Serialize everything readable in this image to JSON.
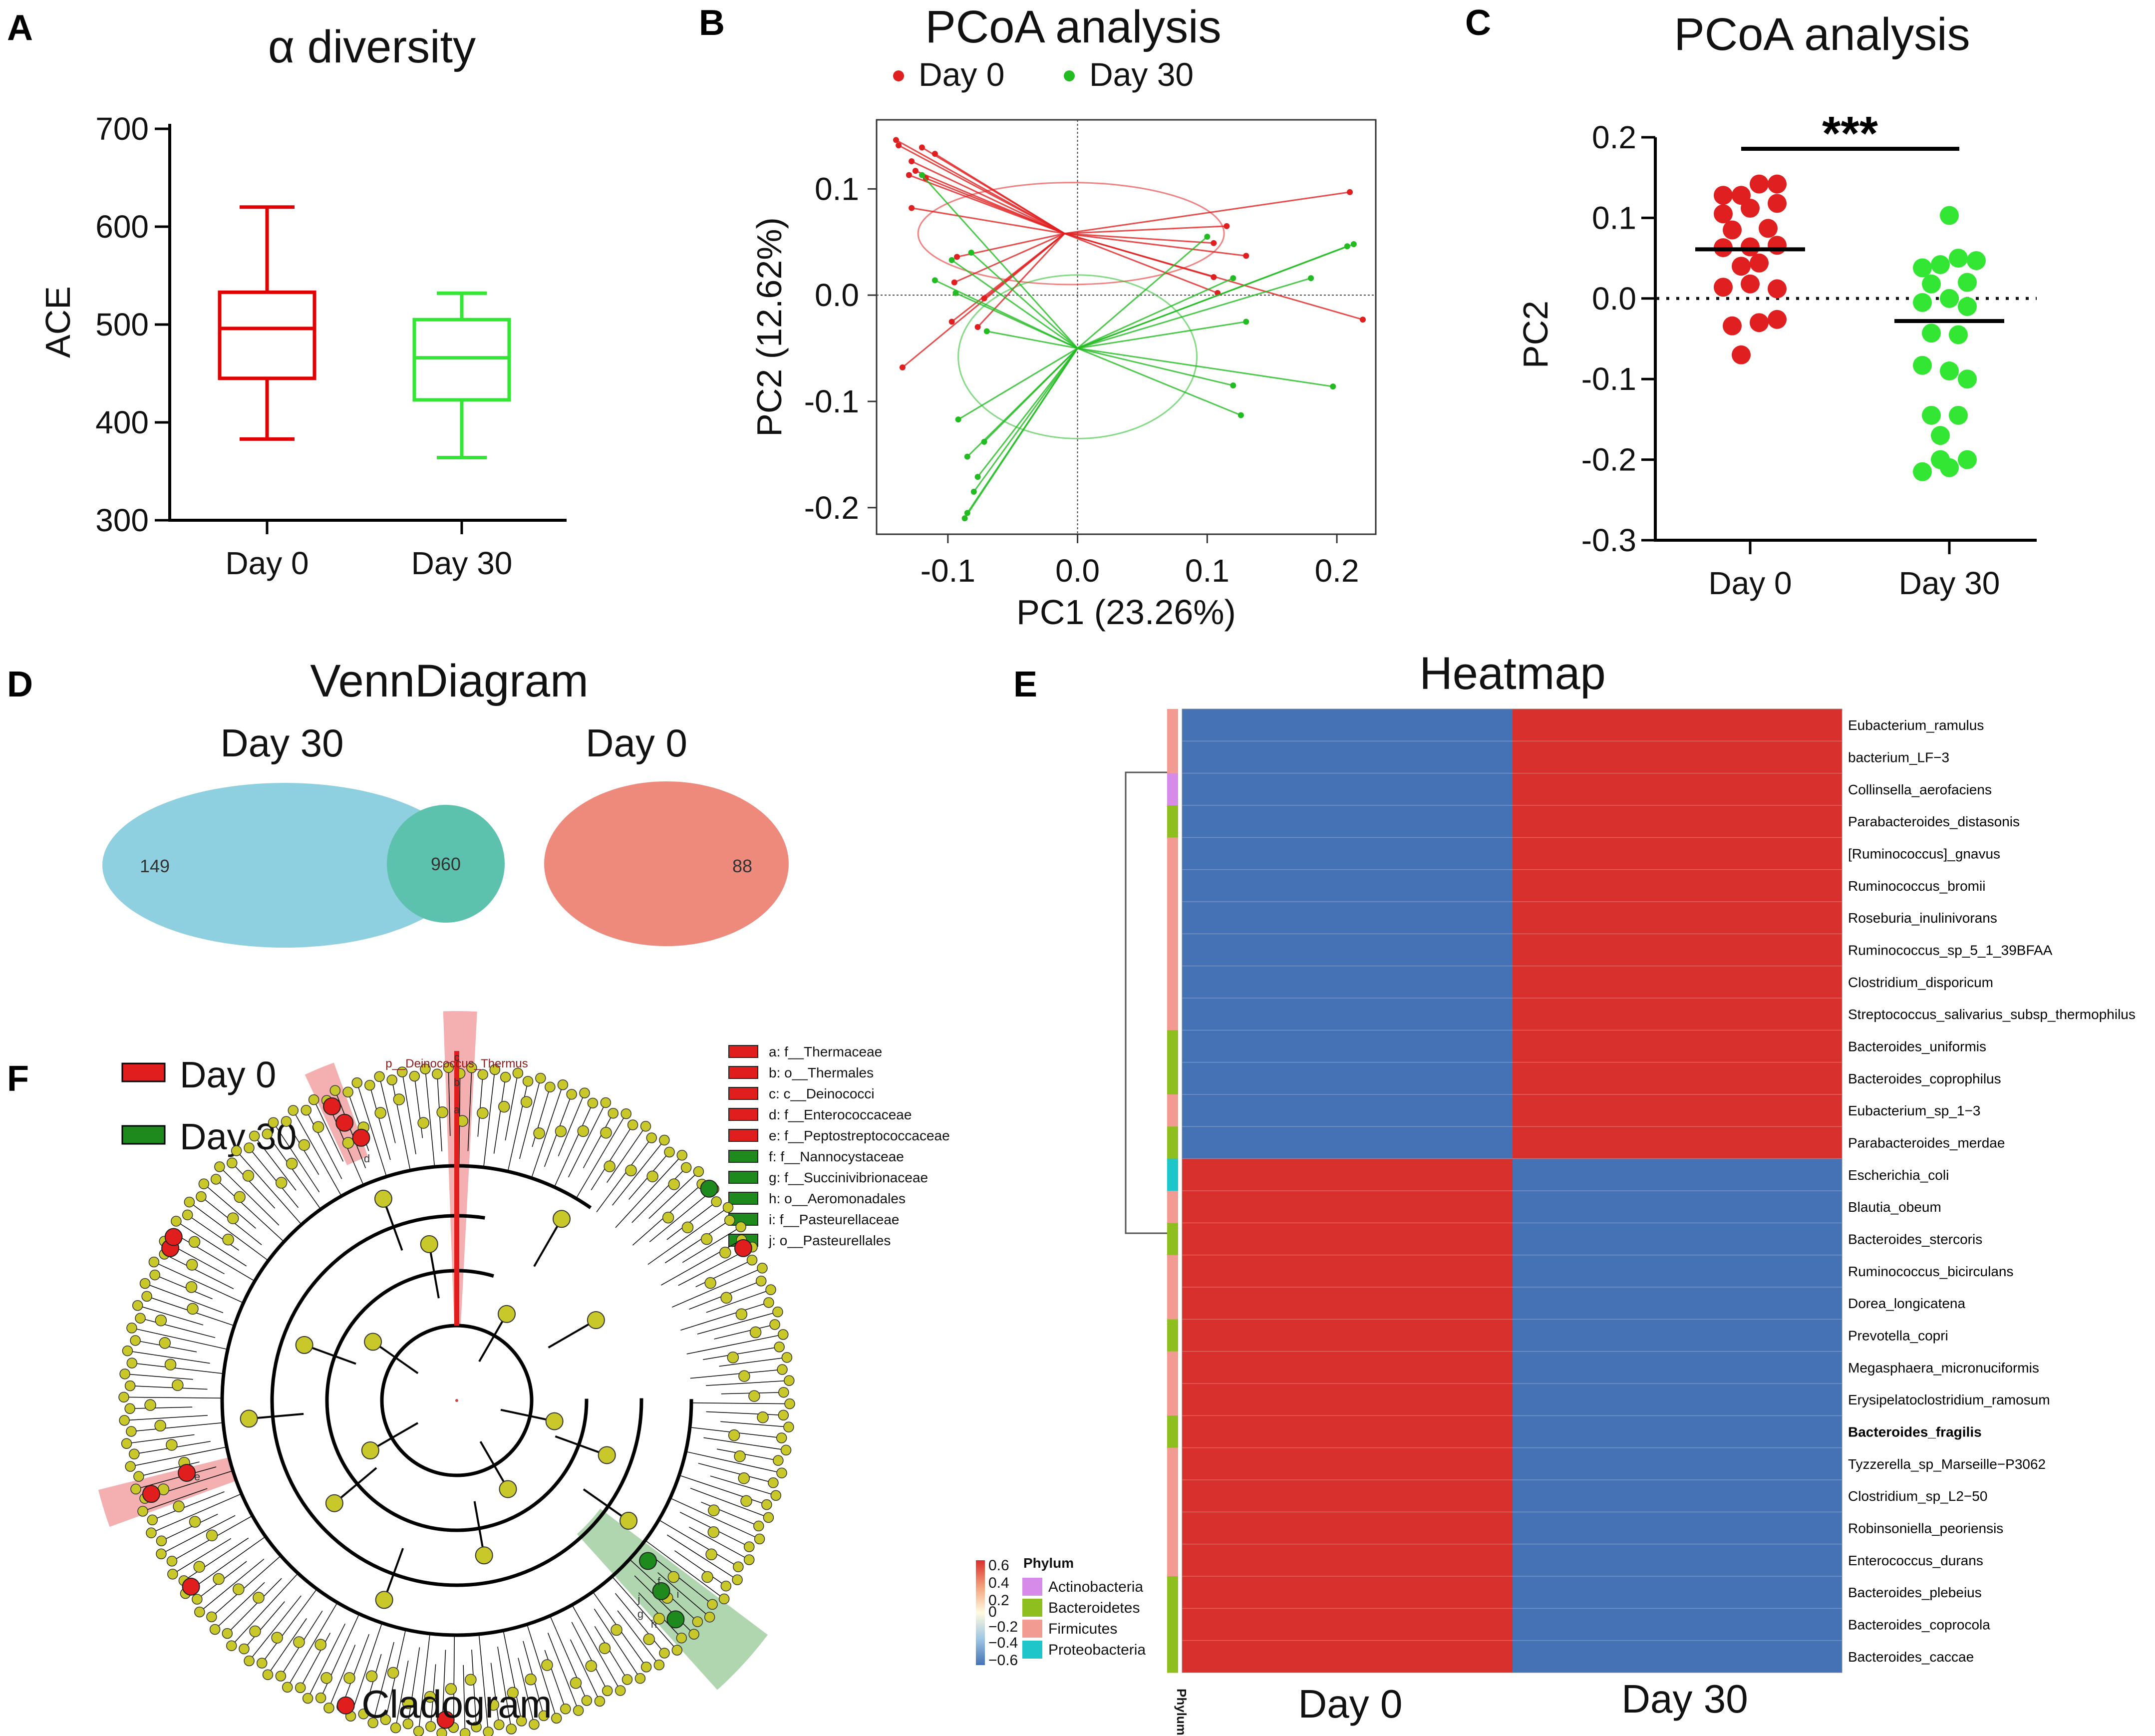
{
  "colors": {
    "day0": "#e00000",
    "day30": "#33e633",
    "pc_red": "#e02020",
    "pc_green": "#22bb22",
    "hm_blue": "#4472b4",
    "hm_red": "#d8302c",
    "venn_blue": "#8ecfe0",
    "venn_red": "#ee8a7c",
    "venn_mid": "#5cc2ad",
    "clado_node": "#c8c82a",
    "clado_red": "#e01e1e",
    "clado_green": "#1e8a1e"
  },
  "panels": {
    "A": "A",
    "B": "B",
    "C": "C",
    "D": "D",
    "E": "E",
    "F": "F"
  },
  "chart_data": [
    {
      "id": "A",
      "type": "box",
      "title": "α diversity",
      "ylabel": "ACE",
      "ylim": [
        300,
        700
      ],
      "yticks": [
        "700",
        "600",
        "500",
        "400",
        "300"
      ],
      "ytick_vals": [
        700,
        600,
        500,
        400,
        300
      ],
      "categories": [
        "Day 0",
        "Day 30"
      ],
      "boxes": [
        {
          "name": "Day 0",
          "min": 383,
          "q1": 445,
          "median": 496,
          "q3": 533,
          "max": 620
        },
        {
          "name": "Day 30",
          "min": 364,
          "q1": 423,
          "median": 466,
          "q3": 505,
          "max": 532
        }
      ]
    },
    {
      "id": "B",
      "type": "scatter",
      "title": "PCoA analysis",
      "xlabel": "PC1 (23.26%)",
      "ylabel": "PC2 (12.62%)",
      "xlim": [
        -0.155,
        0.23
      ],
      "ylim": [
        -0.225,
        0.165
      ],
      "xticks": [
        "-0.1",
        "0.0",
        "0.1",
        "0.2"
      ],
      "xtick_vals": [
        -0.1,
        0,
        0.1,
        0.2
      ],
      "yticks": [
        "0.1",
        "0.0",
        "-0.1",
        "-0.2"
      ],
      "ytick_vals": [
        0.1,
        0,
        -0.1,
        -0.2
      ],
      "legend": [
        "Day 0",
        "Day 30"
      ],
      "series": [
        {
          "name": "Day 0",
          "centroid": [
            -0.01,
            0.058
          ],
          "ellipse": {
            "cx": -0.005,
            "cy": 0.058,
            "rx": 0.118,
            "ry": 0.048
          },
          "points": [
            [
              -0.14,
              0.146
            ],
            [
              -0.138,
              0.141
            ],
            [
              -0.12,
              0.139
            ],
            [
              -0.11,
              0.133
            ],
            [
              -0.128,
              0.126
            ],
            [
              -0.125,
              0.117
            ],
            [
              -0.13,
              0.113
            ],
            [
              -0.117,
              0.11
            ],
            [
              -0.128,
              0.082
            ],
            [
              -0.093,
              0.036
            ],
            [
              -0.095,
              0.012
            ],
            [
              -0.072,
              -0.003
            ],
            [
              -0.097,
              -0.025
            ],
            [
              -0.077,
              -0.03
            ],
            [
              -0.135,
              -0.068
            ],
            [
              0.115,
              0.065
            ],
            [
              0.105,
              0.049
            ],
            [
              0.13,
              0.037
            ],
            [
              0.21,
              0.097
            ],
            [
              0.22,
              -0.023
            ],
            [
              0.105,
              0.017
            ],
            [
              0.108,
              0.002
            ]
          ]
        },
        {
          "name": "Day 30",
          "centroid": [
            0.0,
            -0.05
          ],
          "ellipse": {
            "cx": 0.0,
            "cy": -0.058,
            "rx": 0.092,
            "ry": 0.077
          },
          "points": [
            [
              -0.12,
              0.113
            ],
            [
              -0.097,
              0.033
            ],
            [
              -0.11,
              0.014
            ],
            [
              -0.094,
              0.002
            ],
            [
              -0.07,
              -0.034
            ],
            [
              -0.082,
              0.04
            ],
            [
              0.1,
              0.055
            ],
            [
              0.213,
              0.048
            ],
            [
              0.208,
              0.046
            ],
            [
              0.12,
              0.016
            ],
            [
              0.18,
              0.016
            ],
            [
              0.13,
              -0.025
            ],
            [
              0.197,
              -0.086
            ],
            [
              0.12,
              -0.085
            ],
            [
              0.126,
              -0.113
            ],
            [
              -0.092,
              -0.117
            ],
            [
              -0.072,
              -0.138
            ],
            [
              -0.085,
              -0.152
            ],
            [
              -0.077,
              -0.171
            ],
            [
              -0.08,
              -0.185
            ],
            [
              -0.085,
              -0.205
            ],
            [
              -0.087,
              -0.21
            ]
          ]
        }
      ]
    },
    {
      "id": "C",
      "type": "scatter",
      "title": "PCoA analysis",
      "ylabel": "PC2",
      "ylim": [
        -0.3,
        0.2
      ],
      "yticks": [
        "0.2",
        "0.1",
        "0.0",
        "-0.1",
        "-0.2",
        "-0.3"
      ],
      "ytick_vals": [
        0.2,
        0.1,
        0,
        -0.1,
        -0.2,
        -0.3
      ],
      "categories": [
        "Day 0",
        "Day 30"
      ],
      "significance": "***",
      "series": [
        {
          "name": "Day 0",
          "mean": 0.061,
          "points": [
            [
              -0.09,
              0.128
            ],
            [
              -0.03,
              0.128
            ],
            [
              0.03,
              0.142
            ],
            [
              0.09,
              0.142
            ],
            [
              -0.09,
              0.105
            ],
            [
              0.0,
              0.112
            ],
            [
              0.09,
              0.118
            ],
            [
              -0.06,
              0.085
            ],
            [
              0.06,
              0.087
            ],
            [
              -0.09,
              0.063
            ],
            [
              0.0,
              0.064
            ],
            [
              0.09,
              0.066
            ],
            [
              -0.03,
              0.04
            ],
            [
              0.03,
              0.044
            ],
            [
              -0.09,
              0.014
            ],
            [
              0.0,
              0.018
            ],
            [
              0.09,
              0.012
            ],
            [
              -0.06,
              -0.034
            ],
            [
              0.03,
              -0.03
            ],
            [
              0.09,
              -0.026
            ],
            [
              -0.03,
              -0.07
            ]
          ]
        },
        {
          "name": "Day 30",
          "mean": -0.028,
          "points": [
            [
              0.0,
              0.103
            ],
            [
              -0.09,
              0.038
            ],
            [
              -0.03,
              0.042
            ],
            [
              0.03,
              0.05
            ],
            [
              0.09,
              0.047
            ],
            [
              -0.06,
              0.018
            ],
            [
              0.06,
              0.02
            ],
            [
              -0.09,
              -0.005
            ],
            [
              0.0,
              0.0
            ],
            [
              0.06,
              -0.01
            ],
            [
              -0.06,
              -0.043
            ],
            [
              0.03,
              -0.045
            ],
            [
              -0.09,
              -0.083
            ],
            [
              0.0,
              -0.09
            ],
            [
              0.06,
              -0.1
            ],
            [
              -0.06,
              -0.145
            ],
            [
              0.03,
              -0.145
            ],
            [
              -0.03,
              -0.17
            ],
            [
              -0.03,
              -0.2
            ],
            [
              0.06,
              -0.2
            ],
            [
              0.0,
              -0.21
            ],
            [
              -0.09,
              -0.215
            ]
          ]
        }
      ]
    },
    {
      "id": "D",
      "type": "venn",
      "title": "VennDiagram",
      "sets": [
        {
          "name": "Day 30",
          "only": "149"
        },
        {
          "name": "Day 0",
          "only": "88"
        }
      ],
      "intersection": "960"
    },
    {
      "id": "E",
      "type": "heatmap",
      "title": "Heatmap",
      "columns": [
        "Day 0",
        "Day 30"
      ],
      "phylum_axis_label": "Phylum",
      "rows": [
        {
          "name": "Eubacterium_ramulus",
          "phylum": "Firmicutes",
          "day0": -0.6,
          "day30": 0.6
        },
        {
          "name": "bacterium_LF−3",
          "phylum": "Firmicutes",
          "day0": -0.6,
          "day30": 0.6
        },
        {
          "name": "Collinsella_aerofaciens",
          "phylum": "Actinobacteria",
          "day0": -0.6,
          "day30": 0.6
        },
        {
          "name": "Parabacteroides_distasonis",
          "phylum": "Bacteroidetes",
          "day0": -0.6,
          "day30": 0.6
        },
        {
          "name": "[Ruminococcus]_gnavus",
          "phylum": "Firmicutes",
          "day0": -0.6,
          "day30": 0.6
        },
        {
          "name": "Ruminococcus_bromii",
          "phylum": "Firmicutes",
          "day0": -0.6,
          "day30": 0.6
        },
        {
          "name": "Roseburia_inulinivorans",
          "phylum": "Firmicutes",
          "day0": -0.6,
          "day30": 0.6
        },
        {
          "name": "Ruminococcus_sp_5_1_39BFAA",
          "phylum": "Firmicutes",
          "day0": -0.6,
          "day30": 0.6
        },
        {
          "name": "Clostridium_disporicum",
          "phylum": "Firmicutes",
          "day0": -0.6,
          "day30": 0.6
        },
        {
          "name": "Streptococcus_salivarius_subsp_thermophilus",
          "phylum": "Firmicutes",
          "day0": -0.6,
          "day30": 0.6
        },
        {
          "name": "Bacteroides_uniformis",
          "phylum": "Bacteroidetes",
          "day0": -0.6,
          "day30": 0.6
        },
        {
          "name": "Bacteroides_coprophilus",
          "phylum": "Bacteroidetes",
          "day0": -0.6,
          "day30": 0.6
        },
        {
          "name": "Eubacterium_sp_1−3",
          "phylum": "Firmicutes",
          "day0": -0.6,
          "day30": 0.6
        },
        {
          "name": "Parabacteroides_merdae",
          "phylum": "Bacteroidetes",
          "day0": -0.6,
          "day30": 0.6
        },
        {
          "name": "Escherichia_coli",
          "phylum": "Proteobacteria",
          "day0": 0.6,
          "day30": -0.6
        },
        {
          "name": "Blautia_obeum",
          "phylum": "Firmicutes",
          "day0": 0.6,
          "day30": -0.6
        },
        {
          "name": "Bacteroides_stercoris",
          "phylum": "Bacteroidetes",
          "day0": 0.6,
          "day30": -0.6
        },
        {
          "name": "Ruminococcus_bicirculans",
          "phylum": "Firmicutes",
          "day0": 0.6,
          "day30": -0.6
        },
        {
          "name": "Dorea_longicatena",
          "phylum": "Firmicutes",
          "day0": 0.6,
          "day30": -0.6
        },
        {
          "name": "Prevotella_copri",
          "phylum": "Bacteroidetes",
          "day0": 0.6,
          "day30": -0.6
        },
        {
          "name": "Megasphaera_micronuciformis",
          "phylum": "Firmicutes",
          "day0": 0.6,
          "day30": -0.6
        },
        {
          "name": "Erysipelatoclostridium_ramosum",
          "phylum": "Firmicutes",
          "day0": 0.6,
          "day30": -0.6
        },
        {
          "name": "Bacteroides_fragilis",
          "phylum": "Bacteroidetes",
          "day0": 0.6,
          "day30": -0.6,
          "highlight": true
        },
        {
          "name": "Tyzzerella_sp_Marseille−P3062",
          "phylum": "Firmicutes",
          "day0": 0.6,
          "day30": -0.6
        },
        {
          "name": "Clostridium_sp_L2−50",
          "phylum": "Firmicutes",
          "day0": 0.6,
          "day30": -0.6
        },
        {
          "name": "Robinsoniella_peoriensis",
          "phylum": "Firmicutes",
          "day0": 0.6,
          "day30": -0.6
        },
        {
          "name": "Enterococcus_durans",
          "phylum": "Firmicutes",
          "day0": 0.6,
          "day30": -0.6
        },
        {
          "name": "Bacteroides_plebeius",
          "phylum": "Bacteroidetes",
          "day0": 0.6,
          "day30": -0.6
        },
        {
          "name": "Bacteroides_coprocola",
          "phylum": "Bacteroidetes",
          "day0": 0.6,
          "day30": -0.6
        },
        {
          "name": "Bacteroides_caccae",
          "phylum": "Bacteroidetes",
          "day0": 0.6,
          "day30": -0.6
        }
      ],
      "phylum_legend": {
        "title": "Phylum",
        "items": [
          {
            "name": "Actinobacteria",
            "color": "#d68be8"
          },
          {
            "name": "Bacteroidetes",
            "color": "#8fbf1f"
          },
          {
            "name": "Firmicutes",
            "color": "#f29b93"
          },
          {
            "name": "Proteobacteria",
            "color": "#1fc6c9"
          }
        ]
      },
      "colorbar": {
        "ticks": [
          "0.6",
          "0.4",
          "0.2",
          "0",
          "−0.2",
          "−0.4",
          "−0.6"
        ]
      }
    },
    {
      "id": "F",
      "type": "cladogram",
      "title": "Cladogram",
      "root_label": "p__Deinococcus_Thermus",
      "groups": [
        {
          "name": "Day 0",
          "color": "#e01e1e"
        },
        {
          "name": "Day 30",
          "color": "#1e8a1e"
        }
      ],
      "taxa": [
        {
          "key": "a",
          "label": "a: f__Thermaceae",
          "group": "Day 0"
        },
        {
          "key": "b",
          "label": "b: o__Thermales",
          "group": "Day 0"
        },
        {
          "key": "c",
          "label": "c: c__Deinococci",
          "group": "Day 0"
        },
        {
          "key": "d",
          "label": "d: f__Enterococcaceae",
          "group": "Day 0"
        },
        {
          "key": "e",
          "label": "e: f__Peptostreptococcaceae",
          "group": "Day 0"
        },
        {
          "key": "f",
          "label": "f: f__Nannocystaceae",
          "group": "Day 30"
        },
        {
          "key": "g",
          "label": "g: f__Succinivibrionaceae",
          "group": "Day 30"
        },
        {
          "key": "h",
          "label": "h: o__Aeromonadales",
          "group": "Day 30"
        },
        {
          "key": "i",
          "label": "i: f__Pasteurellaceae",
          "group": "Day 30"
        },
        {
          "key": "j",
          "label": "j: o__Pasteurellales",
          "group": "Day 30"
        }
      ]
    }
  ]
}
